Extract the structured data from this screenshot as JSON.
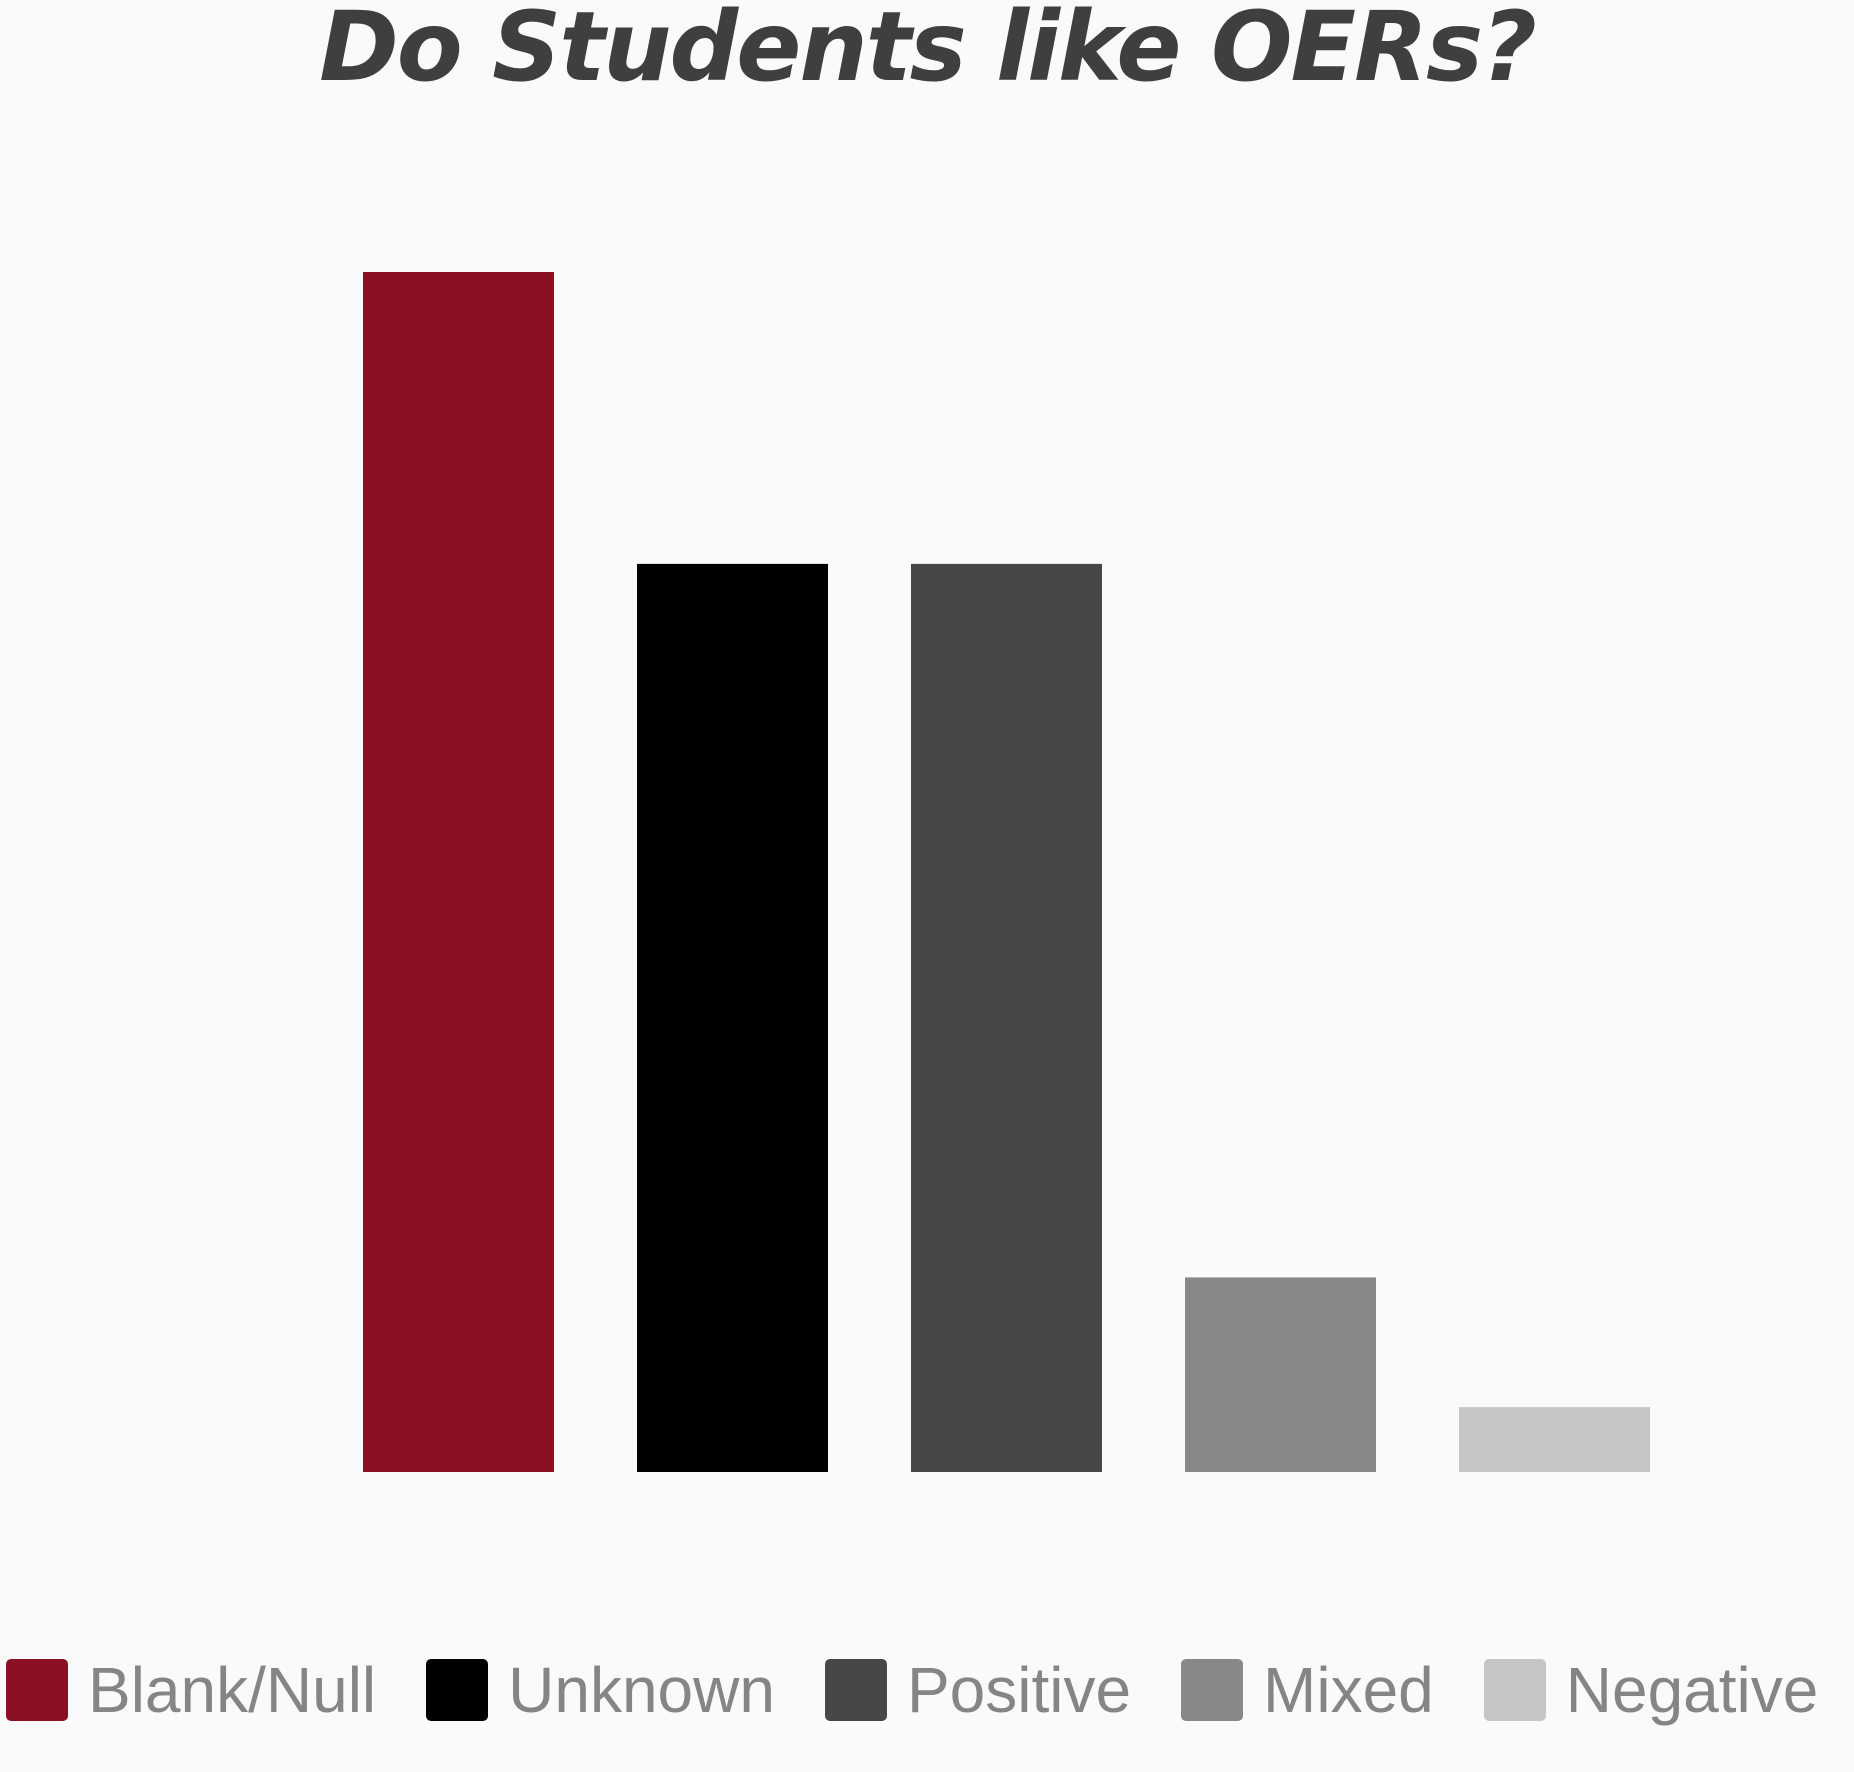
{
  "chart_data": {
    "type": "bar",
    "title": "Do Students like OERs?",
    "xlabel": "",
    "ylabel": "",
    "categories": [
      "Blank/Null",
      "Unknown",
      "Positive",
      "Mixed",
      "Negative"
    ],
    "values": [
      37,
      28,
      28,
      6,
      2
    ],
    "colors": [
      "#8b1024",
      "#000000",
      "#474747",
      "#888888",
      "#c6c6c6"
    ],
    "ylim": [
      0,
      37
    ],
    "grid": false,
    "axes_visible": false,
    "legend": {
      "position": "bottom",
      "items": [
        {
          "label": "Blank/Null",
          "color": "#8b1024"
        },
        {
          "label": "Unknown",
          "color": "#000000"
        },
        {
          "label": "Positive",
          "color": "#474747"
        },
        {
          "label": "Mixed",
          "color": "#888888"
        },
        {
          "label": "Negative",
          "color": "#c6c6c6"
        }
      ]
    }
  }
}
